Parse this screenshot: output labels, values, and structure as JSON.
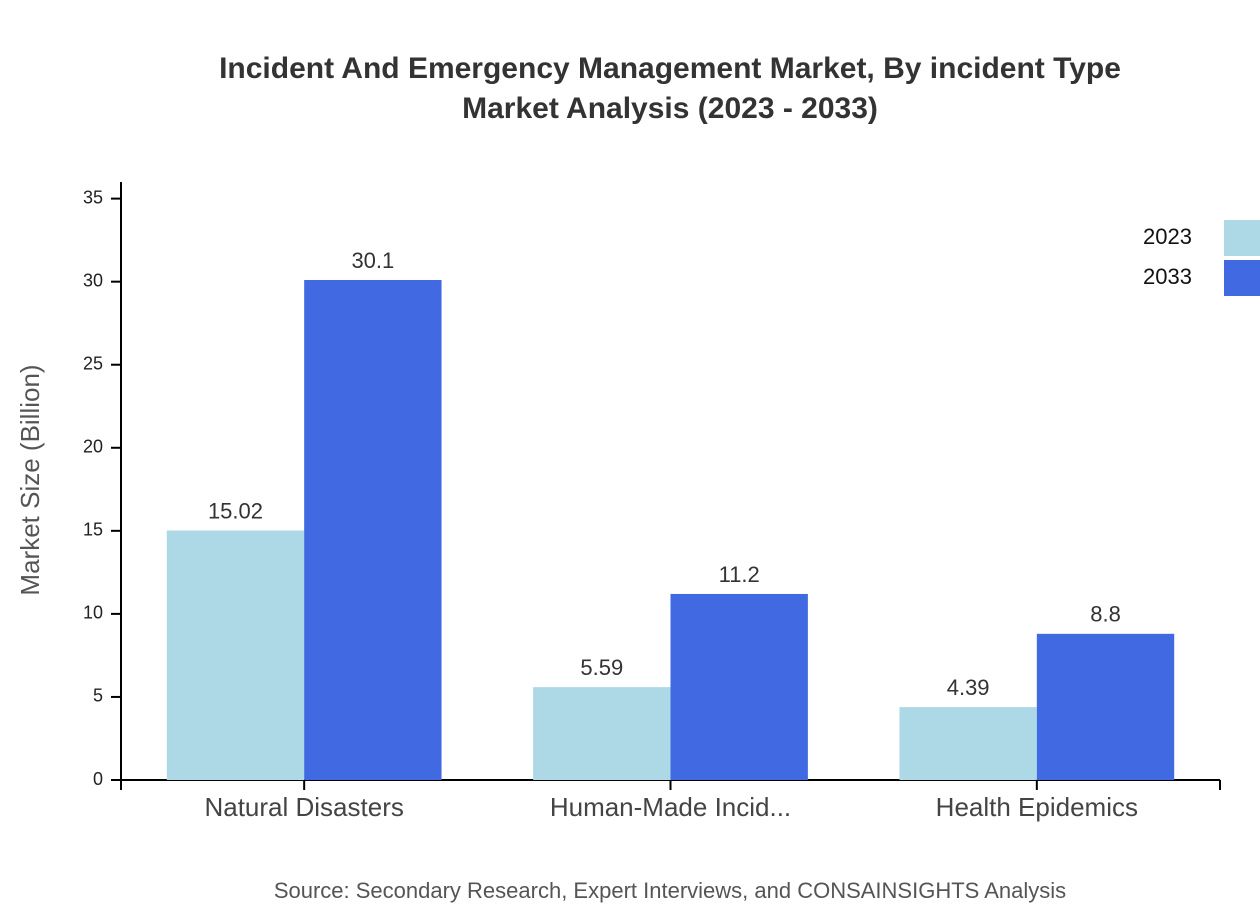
{
  "chart_data": {
    "type": "bar",
    "title": [
      "Incident And Emergency Management Market, By incident Type",
      "Market Analysis (2023 - 2033)"
    ],
    "y_label": "Market Size (Billion)",
    "source": "Source: Secondary Research, Expert Interviews, and CONSAINSIGHTS Analysis",
    "categories": [
      "Natural Disasters",
      "Human-Made Incid...",
      "Health Epidemics"
    ],
    "series": [
      {
        "name": "2023",
        "color": "#add8e6",
        "values": [
          15.02,
          5.59,
          4.39
        ]
      },
      {
        "name": "2033",
        "color": "#4169e1",
        "values": [
          30.1,
          11.2,
          8.8
        ]
      }
    ],
    "ylim": [
      0,
      36
    ],
    "yticks": [
      0,
      5,
      10,
      15,
      20,
      25,
      30,
      35
    ]
  }
}
